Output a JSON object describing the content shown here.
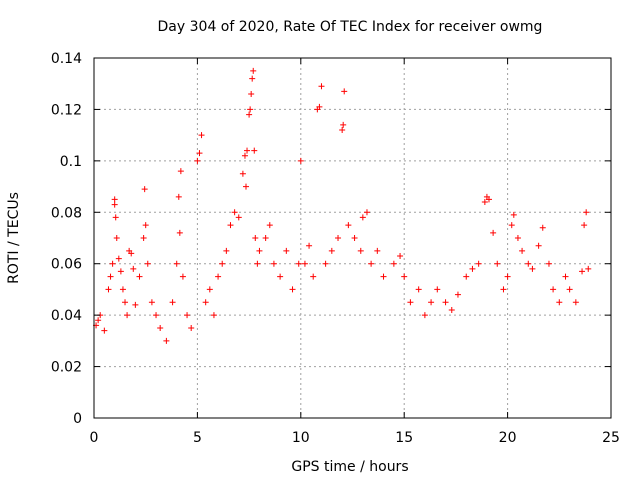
{
  "chart_data": {
    "type": "scatter",
    "title": "Day 304 of 2020, Rate Of TEC Index for receiver owmg",
    "xlabel": "GPS time / hours",
    "ylabel": "ROTI / TECUs",
    "xlim": [
      0,
      25
    ],
    "ylim": [
      0,
      0.14
    ],
    "xticks": [
      "0",
      "5",
      "10",
      "15",
      "20",
      "25"
    ],
    "yticks": [
      "0",
      "0.02",
      "0.04",
      "0.06",
      "0.08",
      "0.1",
      "0.12",
      "0.14"
    ],
    "grid": true,
    "marker": "plus",
    "color": "#ff0000",
    "series": [
      {
        "points": [
          [
            0.1,
            0.036
          ],
          [
            0.2,
            0.038
          ],
          [
            0.3,
            0.04
          ],
          [
            0.5,
            0.034
          ],
          [
            0.7,
            0.05
          ],
          [
            0.8,
            0.055
          ],
          [
            0.9,
            0.06
          ],
          [
            1.0,
            0.085
          ],
          [
            1.0,
            0.083
          ],
          [
            1.05,
            0.078
          ],
          [
            1.1,
            0.07
          ],
          [
            1.2,
            0.062
          ],
          [
            1.3,
            0.057
          ],
          [
            1.4,
            0.05
          ],
          [
            1.5,
            0.045
          ],
          [
            1.6,
            0.04
          ],
          [
            1.7,
            0.065
          ],
          [
            1.8,
            0.064
          ],
          [
            1.9,
            0.058
          ],
          [
            2.0,
            0.044
          ],
          [
            2.2,
            0.055
          ],
          [
            2.4,
            0.07
          ],
          [
            2.45,
            0.089
          ],
          [
            2.5,
            0.075
          ],
          [
            2.6,
            0.06
          ],
          [
            2.8,
            0.045
          ],
          [
            3.0,
            0.04
          ],
          [
            3.2,
            0.035
          ],
          [
            3.5,
            0.03
          ],
          [
            3.8,
            0.045
          ],
          [
            4.0,
            0.06
          ],
          [
            4.1,
            0.086
          ],
          [
            4.15,
            0.072
          ],
          [
            4.2,
            0.096
          ],
          [
            4.3,
            0.055
          ],
          [
            4.5,
            0.04
          ],
          [
            4.7,
            0.035
          ],
          [
            5.0,
            0.1
          ],
          [
            5.1,
            0.103
          ],
          [
            5.2,
            0.11
          ],
          [
            5.4,
            0.045
          ],
          [
            5.6,
            0.05
          ],
          [
            5.8,
            0.04
          ],
          [
            6.0,
            0.055
          ],
          [
            6.2,
            0.06
          ],
          [
            6.4,
            0.065
          ],
          [
            6.6,
            0.075
          ],
          [
            6.8,
            0.08
          ],
          [
            7.0,
            0.078
          ],
          [
            7.2,
            0.095
          ],
          [
            7.3,
            0.102
          ],
          [
            7.35,
            0.09
          ],
          [
            7.4,
            0.104
          ],
          [
            7.5,
            0.118
          ],
          [
            7.55,
            0.12
          ],
          [
            7.6,
            0.126
          ],
          [
            7.65,
            0.132
          ],
          [
            7.7,
            0.135
          ],
          [
            7.75,
            0.104
          ],
          [
            7.8,
            0.07
          ],
          [
            7.9,
            0.06
          ],
          [
            8.0,
            0.065
          ],
          [
            8.3,
            0.07
          ],
          [
            8.5,
            0.075
          ],
          [
            8.7,
            0.06
          ],
          [
            9.0,
            0.055
          ],
          [
            9.3,
            0.065
          ],
          [
            9.6,
            0.05
          ],
          [
            9.9,
            0.06
          ],
          [
            10.0,
            0.1
          ],
          [
            10.2,
            0.06
          ],
          [
            10.4,
            0.067
          ],
          [
            10.6,
            0.055
          ],
          [
            10.8,
            0.12
          ],
          [
            10.9,
            0.121
          ],
          [
            11.0,
            0.129
          ],
          [
            11.2,
            0.06
          ],
          [
            11.5,
            0.065
          ],
          [
            11.8,
            0.07
          ],
          [
            12.0,
            0.112
          ],
          [
            12.05,
            0.114
          ],
          [
            12.1,
            0.127
          ],
          [
            12.3,
            0.075
          ],
          [
            12.6,
            0.07
          ],
          [
            12.9,
            0.065
          ],
          [
            13.0,
            0.078
          ],
          [
            13.2,
            0.08
          ],
          [
            13.4,
            0.06
          ],
          [
            13.7,
            0.065
          ],
          [
            14.0,
            0.055
          ],
          [
            14.5,
            0.06
          ],
          [
            14.8,
            0.063
          ],
          [
            15.0,
            0.055
          ],
          [
            15.3,
            0.045
          ],
          [
            15.7,
            0.05
          ],
          [
            16.0,
            0.04
          ],
          [
            16.3,
            0.045
          ],
          [
            16.6,
            0.05
          ],
          [
            17.0,
            0.045
          ],
          [
            17.3,
            0.042
          ],
          [
            17.6,
            0.048
          ],
          [
            18.0,
            0.055
          ],
          [
            18.3,
            0.058
          ],
          [
            18.6,
            0.06
          ],
          [
            18.9,
            0.084
          ],
          [
            19.0,
            0.086
          ],
          [
            19.1,
            0.085
          ],
          [
            19.3,
            0.072
          ],
          [
            19.5,
            0.06
          ],
          [
            19.8,
            0.05
          ],
          [
            20.0,
            0.055
          ],
          [
            20.2,
            0.075
          ],
          [
            20.3,
            0.079
          ],
          [
            20.5,
            0.07
          ],
          [
            20.7,
            0.065
          ],
          [
            21.0,
            0.06
          ],
          [
            21.2,
            0.058
          ],
          [
            21.5,
            0.067
          ],
          [
            21.7,
            0.074
          ],
          [
            22.0,
            0.06
          ],
          [
            22.2,
            0.05
          ],
          [
            22.5,
            0.045
          ],
          [
            22.8,
            0.055
          ],
          [
            23.0,
            0.05
          ],
          [
            23.3,
            0.045
          ],
          [
            23.6,
            0.057
          ],
          [
            23.7,
            0.075
          ],
          [
            23.8,
            0.08
          ],
          [
            23.9,
            0.058
          ]
        ]
      }
    ]
  }
}
